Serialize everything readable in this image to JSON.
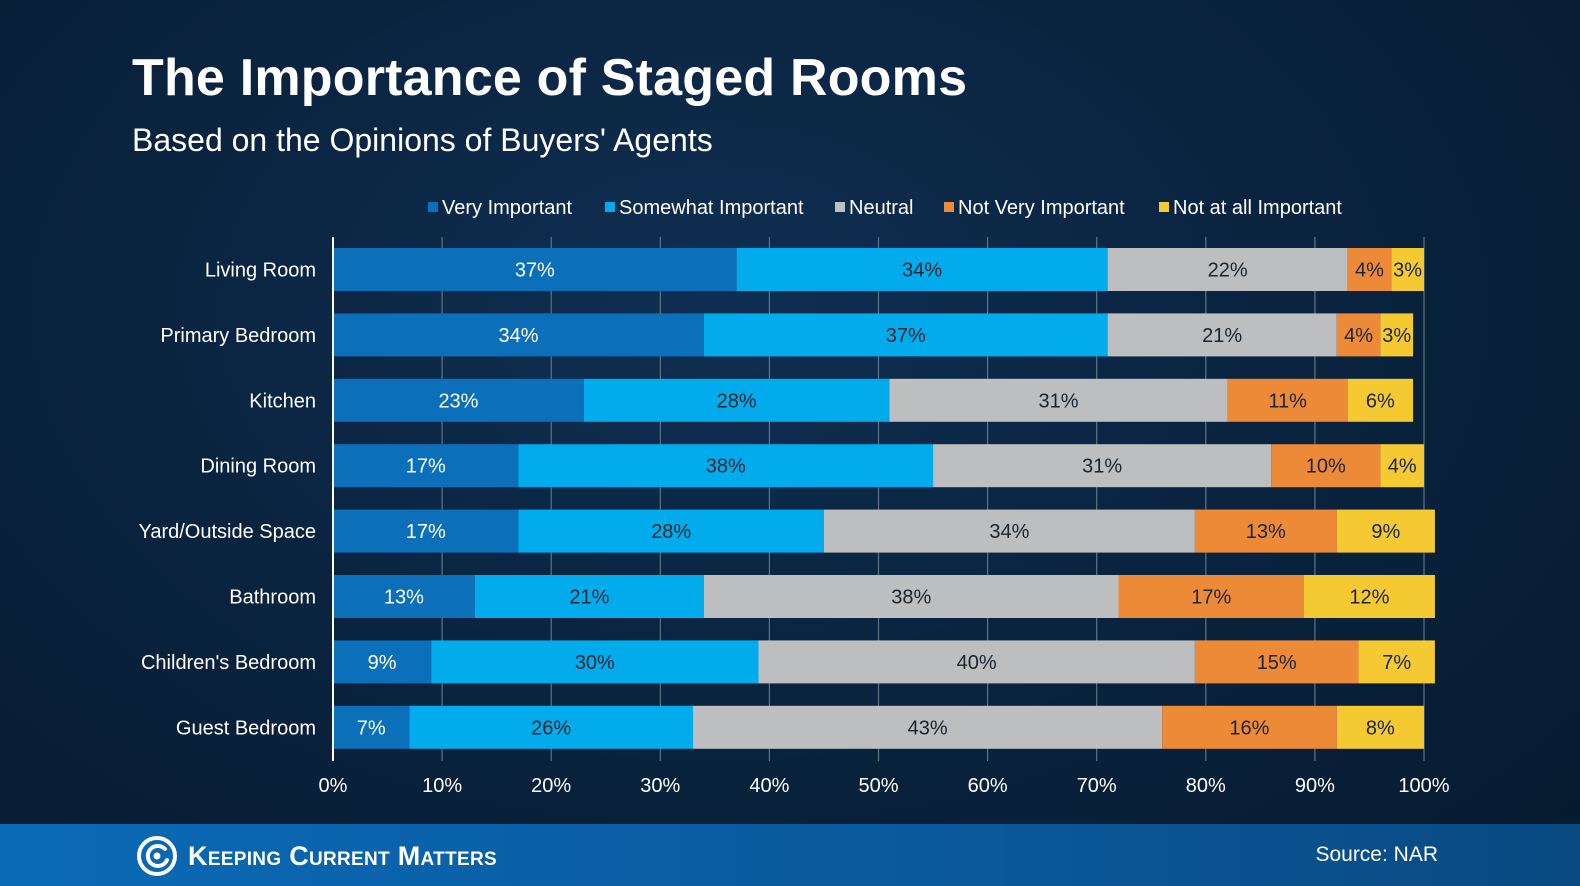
{
  "header": {
    "title": "The Importance of Staged Rooms",
    "subtitle": "Based on the Opinions of Buyers' Agents"
  },
  "footer": {
    "brand": "Keeping Current Matters",
    "source": "Source: NAR"
  },
  "chart_data": {
    "type": "bar",
    "orientation": "horizontal",
    "stacked": true,
    "title": "The Importance of Staged Rooms",
    "subtitle": "Based on the Opinions of Buyers' Agents",
    "categories": [
      "Living Room",
      "Primary Bedroom",
      "Kitchen",
      "Dining Room",
      "Yard/Outside Space",
      "Bathroom",
      "Children's Bedroom",
      "Guest Bedroom"
    ],
    "series": [
      {
        "name": "Very Important",
        "color": "#0b6fba",
        "values": [
          37,
          34,
          23,
          17,
          17,
          13,
          9,
          7
        ]
      },
      {
        "name": "Somewhat Important",
        "color": "#02acec",
        "values": [
          34,
          37,
          28,
          38,
          28,
          21,
          30,
          26
        ]
      },
      {
        "name": "Neutral",
        "color": "#bcbec0",
        "values": [
          22,
          21,
          31,
          31,
          34,
          38,
          40,
          43
        ]
      },
      {
        "name": "Not Very Important",
        "color": "#ed8a37",
        "values": [
          4,
          4,
          11,
          10,
          13,
          17,
          15,
          16
        ]
      },
      {
        "name": "Not at all Important",
        "color": "#f4c932",
        "values": [
          3,
          3,
          6,
          4,
          9,
          12,
          7,
          8
        ]
      }
    ],
    "value_format": "%",
    "xlim": [
      0,
      100
    ],
    "xticks": [
      0,
      10,
      20,
      30,
      40,
      50,
      60,
      70,
      80,
      90,
      100
    ],
    "xtick_labels": [
      "0%",
      "10%",
      "20%",
      "30%",
      "40%",
      "50%",
      "60%",
      "70%",
      "80%",
      "90%",
      "100%"
    ],
    "grid": true,
    "legend": "top"
  }
}
